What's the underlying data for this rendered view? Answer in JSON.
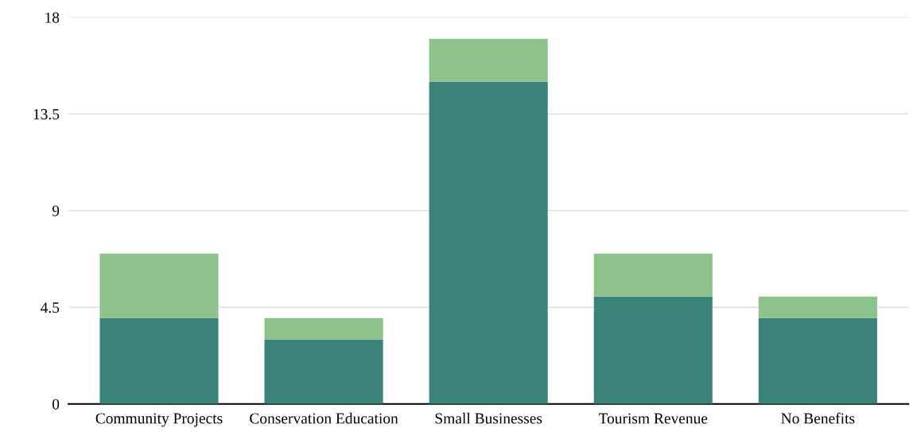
{
  "chart_data": {
    "type": "bar",
    "stacked": true,
    "categories": [
      "Community Projects",
      "Conservation Education",
      "Small Businesses",
      "Tourism Revenue",
      "No Benefits"
    ],
    "series": [
      {
        "color": "#3b8379",
        "values": [
          4,
          3,
          15,
          5,
          4
        ]
      },
      {
        "color": "#8bc38a",
        "values": [
          3,
          1,
          2,
          2,
          1
        ]
      }
    ],
    "ylim": [
      0,
      18
    ],
    "yticks": [
      0,
      4.5,
      9,
      13.5,
      18
    ],
    "grid": "y"
  }
}
